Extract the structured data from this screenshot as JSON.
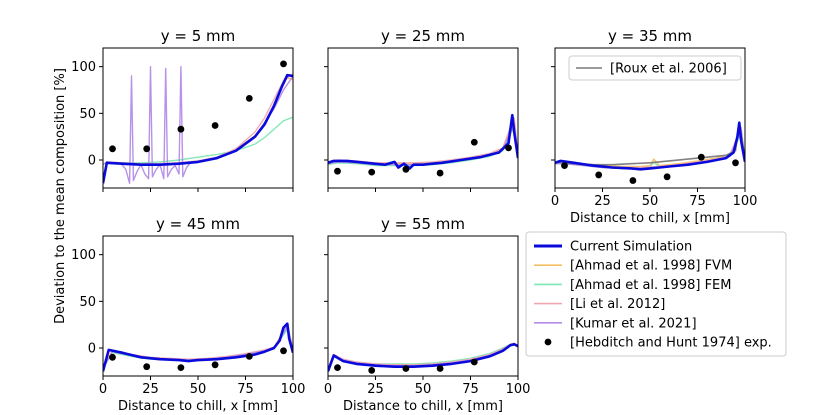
{
  "figure": {
    "ylabel": "Deviation to the mean composition [%]",
    "xlabel": "Distance to chill, x [mm]"
  },
  "colors": {
    "current": "#0a0adc",
    "ahmad_fvm": "#f5c065",
    "ahmad_fem": "#7ee8b4",
    "li": "#f0a8b0",
    "kumar": "#b48ce8",
    "roux": "#7a7a7a",
    "exp": "#000000"
  },
  "legend_main": [
    {
      "key": "current",
      "label": "Current Simulation",
      "kind": "line"
    },
    {
      "key": "ahmad_fvm",
      "label": "[Ahmad et al. 1998] FVM",
      "kind": "line"
    },
    {
      "key": "ahmad_fem",
      "label": "[Ahmad et al. 1998] FEM",
      "kind": "line"
    },
    {
      "key": "li",
      "label": "[Li et al. 2012]",
      "kind": "line"
    },
    {
      "key": "kumar",
      "label": "[Kumar et al. 2021]",
      "kind": "line"
    },
    {
      "key": "exp",
      "label": "[Hebditch and Hunt 1974] exp.",
      "kind": "marker"
    }
  ],
  "legend_roux": {
    "key": "roux",
    "label": "[Roux et al. 2006]"
  },
  "chart_data": [
    {
      "type": "line",
      "title": "y = 5 mm",
      "xlim": [
        0,
        100
      ],
      "ylim": [
        -30,
        120
      ],
      "xticks": [
        0,
        25,
        50,
        75,
        100
      ],
      "yticks": [
        0,
        50,
        100
      ],
      "series": [
        {
          "key": "current",
          "x": [
            0,
            2,
            10,
            20,
            30,
            40,
            50,
            60,
            70,
            80,
            85,
            90,
            94,
            97,
            100
          ],
          "y": [
            -25,
            -3,
            -4,
            -5,
            -5,
            -4,
            -2,
            2,
            10,
            25,
            38,
            58,
            78,
            91,
            90
          ]
        },
        {
          "key": "ahmad_fvm",
          "x": [
            0,
            2,
            10,
            20,
            30,
            40,
            50,
            60,
            70,
            80,
            85,
            90,
            94,
            97,
            100
          ],
          "y": [
            -20,
            -2,
            -3,
            -4,
            -4,
            -3,
            -1,
            3,
            11,
            26,
            39,
            59,
            78,
            88,
            86
          ]
        },
        {
          "key": "ahmad_fem",
          "x": [
            0,
            2,
            10,
            20,
            30,
            40,
            50,
            60,
            70,
            80,
            85,
            90,
            95,
            100
          ],
          "y": [
            -20,
            -3,
            -3,
            -3,
            -2,
            0,
            3,
            6,
            10,
            17,
            24,
            33,
            42,
            46
          ]
        },
        {
          "key": "li",
          "x": [
            0,
            2,
            10,
            20,
            30,
            40,
            50,
            60,
            70,
            80,
            85,
            90,
            95,
            100
          ],
          "y": [
            -22,
            -2,
            -3,
            -4,
            -4,
            -3,
            -1,
            3,
            12,
            30,
            45,
            65,
            85,
            92
          ]
        },
        {
          "key": "kumar",
          "x": [
            0,
            2,
            5,
            8,
            10,
            12,
            14,
            15,
            16,
            18,
            20,
            22,
            24,
            25,
            26,
            28,
            30,
            32,
            33,
            34,
            36,
            38,
            40,
            41,
            42,
            44,
            46,
            50,
            55,
            60,
            70,
            80,
            90,
            95,
            100
          ],
          "y": [
            -5,
            -2,
            -3,
            -3,
            -5,
            -10,
            -25,
            90,
            -22,
            -12,
            -5,
            -15,
            -20,
            100,
            -18,
            -10,
            -5,
            -20,
            98,
            -18,
            -10,
            -6,
            -15,
            100,
            -18,
            -8,
            -3,
            -2,
            0,
            3,
            10,
            25,
            55,
            75,
            90
          ]
        }
      ],
      "exp": {
        "x": [
          5,
          23,
          41,
          59,
          77,
          95
        ],
        "y": [
          12,
          12,
          33,
          37,
          66,
          103
        ]
      }
    },
    {
      "type": "line",
      "title": "y = 25 mm",
      "xlim": [
        0,
        100
      ],
      "ylim": [
        -30,
        120
      ],
      "xticks": [
        0,
        25,
        50,
        75,
        100
      ],
      "yticks": [
        0,
        50,
        100
      ],
      "series": [
        {
          "key": "current",
          "x": [
            0,
            3,
            10,
            20,
            30,
            35,
            37,
            40,
            43,
            45,
            50,
            55,
            60,
            70,
            80,
            90,
            95,
            97,
            98,
            100
          ],
          "y": [
            -3,
            -1,
            -1,
            -3,
            -5,
            -2,
            -8,
            -4,
            -9,
            -5,
            -5,
            -4,
            -3,
            0,
            3,
            8,
            18,
            48,
            30,
            2
          ]
        },
        {
          "key": "ahmad_fvm",
          "x": [
            0,
            5,
            15,
            25,
            35,
            45,
            55,
            65,
            75,
            85,
            92,
            96,
            98,
            100
          ],
          "y": [
            -2,
            -1,
            -2,
            -4,
            -4,
            -4,
            -3,
            -1,
            2,
            6,
            12,
            30,
            40,
            5
          ]
        },
        {
          "key": "ahmad_fem",
          "x": [
            0,
            5,
            15,
            25,
            35,
            45,
            55,
            65,
            75,
            85,
            92,
            96,
            98,
            100
          ],
          "y": [
            -5,
            -3,
            -4,
            -6,
            -6,
            -6,
            -5,
            -3,
            0,
            4,
            10,
            28,
            35,
            3
          ]
        },
        {
          "key": "li",
          "x": [
            0,
            5,
            15,
            25,
            35,
            45,
            55,
            65,
            75,
            85,
            92,
            96,
            98,
            100
          ],
          "y": [
            -2,
            0,
            -1,
            -3,
            -3,
            -3,
            -2,
            0,
            3,
            7,
            13,
            35,
            45,
            5
          ]
        },
        {
          "key": "kumar",
          "x": [
            0,
            5,
            15,
            25,
            35,
            45,
            55,
            65,
            75,
            85,
            92,
            96,
            98,
            100
          ],
          "y": [
            -4,
            -2,
            -3,
            -5,
            -5,
            -5,
            -4,
            -2,
            1,
            5,
            11,
            30,
            38,
            4
          ]
        }
      ],
      "exp": {
        "x": [
          5,
          23,
          41,
          59,
          77,
          95
        ],
        "y": [
          -12,
          -13,
          -10,
          -14,
          19,
          13
        ]
      }
    },
    {
      "type": "line",
      "title": "y = 35 mm",
      "xlim": [
        0,
        100
      ],
      "ylim": [
        -30,
        120
      ],
      "xticks": [
        0,
        25,
        50,
        75,
        100
      ],
      "yticks": [
        0,
        50,
        100
      ],
      "xlabel": "Distance to chill, x [mm]",
      "series": [
        {
          "key": "current",
          "x": [
            0,
            3,
            10,
            20,
            30,
            40,
            45,
            50,
            55,
            60,
            70,
            80,
            90,
            94,
            96,
            97,
            98,
            100
          ],
          "y": [
            -3,
            -1,
            -3,
            -6,
            -8,
            -9,
            -10,
            -9,
            -8,
            -7,
            -5,
            -2,
            2,
            8,
            25,
            40,
            20,
            -2
          ]
        },
        {
          "key": "ahmad_fvm",
          "x": [
            0,
            5,
            15,
            25,
            35,
            45,
            50,
            52,
            55,
            65,
            75,
            85,
            92,
            96,
            98,
            100
          ],
          "y": [
            -2,
            -2,
            -4,
            -6,
            -7,
            -7,
            -6,
            1,
            -6,
            -4,
            -1,
            2,
            6,
            22,
            30,
            0
          ]
        },
        {
          "key": "ahmad_fem",
          "x": [
            0,
            5,
            15,
            25,
            35,
            45,
            50,
            52,
            55,
            65,
            75,
            85,
            92,
            96,
            98,
            100
          ],
          "y": [
            -4,
            -4,
            -6,
            -8,
            -9,
            -9,
            -8,
            -2,
            -8,
            -6,
            -3,
            0,
            4,
            20,
            28,
            -1
          ]
        },
        {
          "key": "li",
          "x": [
            0,
            5,
            15,
            25,
            35,
            45,
            55,
            65,
            75,
            85,
            92,
            96,
            98,
            100
          ],
          "y": [
            -3,
            -3,
            -5,
            -7,
            -8,
            -8,
            -7,
            -5,
            -2,
            1,
            5,
            25,
            35,
            0
          ]
        },
        {
          "key": "kumar",
          "x": [
            0,
            5,
            15,
            25,
            35,
            45,
            55,
            65,
            75,
            85,
            92,
            96,
            98,
            100
          ],
          "y": [
            -4,
            -4,
            -6,
            -8,
            -9,
            -9,
            -8,
            -6,
            -3,
            0,
            4,
            22,
            32,
            -1
          ]
        },
        {
          "key": "roux",
          "x": [
            0,
            10,
            20,
            30,
            40,
            50,
            60,
            70,
            80,
            90,
            95,
            97,
            100
          ],
          "y": [
            -2,
            -4,
            -5,
            -5,
            -4,
            -3,
            -1,
            1,
            3,
            5,
            10,
            38,
            2
          ]
        }
      ],
      "exp": {
        "x": [
          5,
          23,
          41,
          59,
          77,
          95
        ],
        "y": [
          -6,
          -16,
          -22,
          -18,
          3,
          -3
        ]
      }
    },
    {
      "type": "line",
      "title": "y = 45 mm",
      "xlim": [
        0,
        100
      ],
      "ylim": [
        -30,
        120
      ],
      "xticks": [
        0,
        25,
        50,
        75,
        100
      ],
      "yticks": [
        0,
        50,
        100
      ],
      "xlabel": "Distance to chill, x [mm]",
      "series": [
        {
          "key": "current",
          "x": [
            0,
            3,
            10,
            20,
            30,
            40,
            45,
            50,
            60,
            70,
            80,
            85,
            90,
            93,
            95,
            97,
            98,
            100
          ],
          "y": [
            -25,
            -2,
            -5,
            -10,
            -12,
            -13,
            -14,
            -13,
            -12,
            -10,
            -7,
            -4,
            0,
            8,
            22,
            26,
            10,
            -5
          ]
        },
        {
          "key": "ahmad_fvm",
          "x": [
            0,
            5,
            15,
            25,
            35,
            45,
            55,
            65,
            75,
            85,
            90,
            95,
            97,
            100
          ],
          "y": [
            -20,
            -3,
            -8,
            -11,
            -12,
            -13,
            -12,
            -10,
            -7,
            -3,
            0,
            15,
            22,
            -2
          ]
        },
        {
          "key": "ahmad_fem",
          "x": [
            0,
            5,
            15,
            25,
            35,
            45,
            55,
            65,
            75,
            85,
            90,
            95,
            97,
            100
          ],
          "y": [
            -22,
            -5,
            -9,
            -12,
            -13,
            -14,
            -13,
            -11,
            -8,
            -4,
            -1,
            14,
            20,
            -3
          ]
        },
        {
          "key": "li",
          "x": [
            0,
            5,
            15,
            25,
            35,
            45,
            55,
            65,
            75,
            85,
            90,
            95,
            97,
            100
          ],
          "y": [
            -20,
            -3,
            -7,
            -10,
            -11,
            -12,
            -11,
            -9,
            -6,
            -2,
            1,
            18,
            25,
            -1
          ]
        },
        {
          "key": "kumar",
          "x": [
            0,
            5,
            15,
            25,
            35,
            45,
            55,
            65,
            75,
            85,
            90,
            95,
            97,
            100
          ],
          "y": [
            -22,
            -4,
            -8,
            -11,
            -12,
            -13,
            -12,
            -10,
            -7,
            -3,
            0,
            16,
            23,
            -2
          ]
        }
      ],
      "exp": {
        "x": [
          5,
          23,
          41,
          59,
          77,
          95
        ],
        "y": [
          -10,
          -20,
          -21,
          -18,
          -9,
          -3
        ]
      }
    },
    {
      "type": "line",
      "title": "y = 55 mm",
      "xlim": [
        0,
        100
      ],
      "ylim": [
        -30,
        120
      ],
      "xticks": [
        0,
        25,
        50,
        75,
        100
      ],
      "yticks": [
        0,
        50,
        100
      ],
      "xlabel": "Distance to chill, x [mm]",
      "series": [
        {
          "key": "current",
          "x": [
            0,
            3,
            8,
            15,
            25,
            35,
            45,
            55,
            65,
            75,
            85,
            92,
            96,
            98,
            100
          ],
          "y": [
            -25,
            -8,
            -14,
            -17,
            -19,
            -20,
            -20,
            -19,
            -17,
            -14,
            -9,
            -3,
            3,
            4,
            2
          ]
        },
        {
          "key": "ahmad_fvm",
          "x": [
            0,
            3,
            8,
            15,
            25,
            35,
            45,
            55,
            65,
            75,
            85,
            92,
            96,
            98,
            100
          ],
          "y": [
            -22,
            -7,
            -13,
            -16,
            -18,
            -19,
            -19,
            -18,
            -16,
            -13,
            -8,
            -2,
            3,
            4,
            1
          ]
        },
        {
          "key": "ahmad_fem",
          "x": [
            0,
            3,
            8,
            15,
            25,
            35,
            45,
            55,
            65,
            75,
            85,
            92,
            96,
            98,
            100
          ],
          "y": [
            -24,
            -9,
            -14,
            -16,
            -17,
            -17,
            -17,
            -16,
            -14,
            -11,
            -6,
            0,
            4,
            5,
            2
          ]
        },
        {
          "key": "li",
          "x": [
            0,
            3,
            8,
            15,
            25,
            35,
            45,
            55,
            65,
            75,
            85,
            92,
            96,
            98,
            100
          ],
          "y": [
            -22,
            -7,
            -12,
            -15,
            -17,
            -18,
            -18,
            -17,
            -15,
            -12,
            -7,
            -1,
            4,
            5,
            2
          ]
        },
        {
          "key": "kumar",
          "x": [
            0,
            3,
            8,
            15,
            25,
            35,
            45,
            55,
            65,
            75,
            85,
            92,
            96,
            98,
            100
          ],
          "y": [
            -24,
            -8,
            -13,
            -16,
            -18,
            -19,
            -19,
            -18,
            -16,
            -13,
            -8,
            -2,
            3,
            4,
            1
          ]
        }
      ],
      "exp": {
        "x": [
          5,
          23,
          41,
          59,
          77
        ],
        "y": [
          -21,
          -24,
          -22,
          -22,
          -15
        ]
      }
    }
  ]
}
